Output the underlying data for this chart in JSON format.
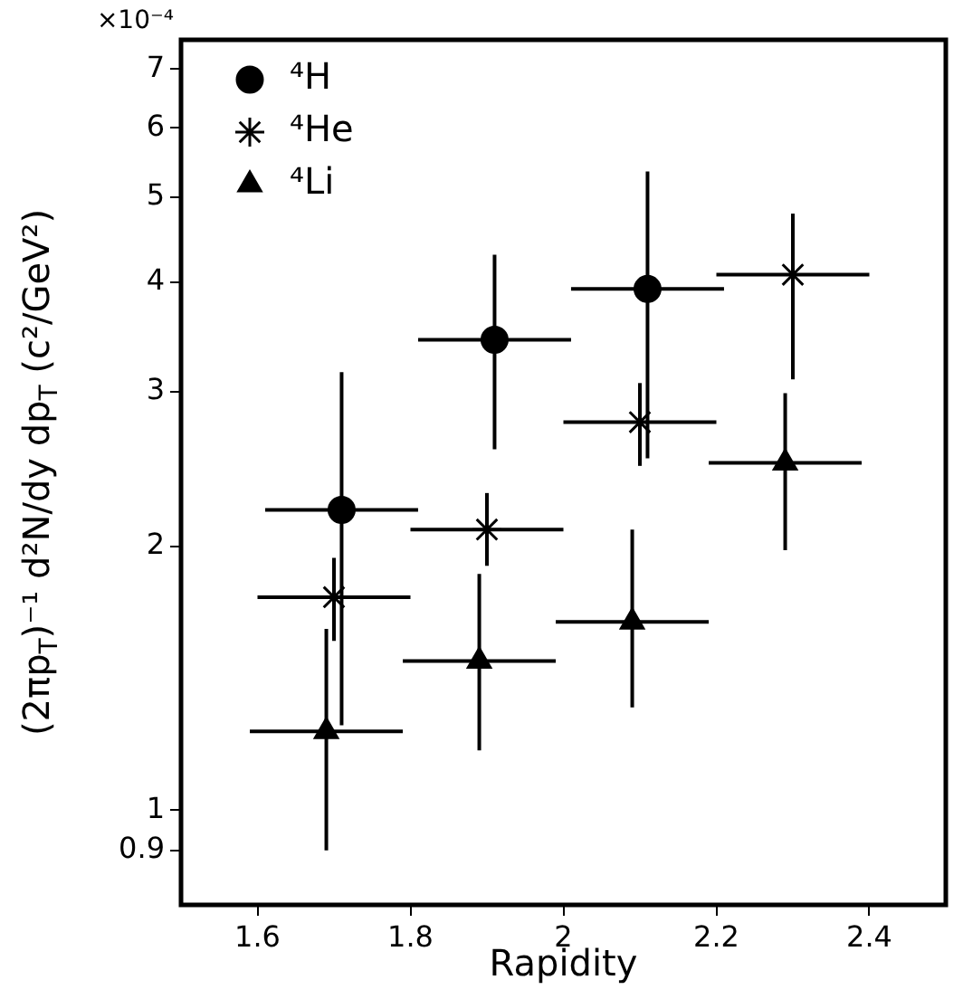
{
  "chart_data": {
    "type": "scatter",
    "xlabel": "Rapidity",
    "ylabel": "(2πp$_{T}$)⁻¹ d²N/dy dp$_{T}$ (c²/GeV²)",
    "xlim": [
      1.5,
      2.5
    ],
    "xticks": [
      1.6,
      1.8,
      2,
      2.2,
      2.4
    ],
    "ylim": [
      0.78,
      7.56
    ],
    "log": true,
    "yticks": [
      0.9,
      1,
      2,
      3,
      4,
      5,
      6,
      7
    ],
    "annotations": [
      "×10⁻⁴"
    ],
    "grid": false,
    "legend": "top left",
    "series": [
      {
        "name": "⁴H",
        "color": "#000000",
        "marker": "circle",
        "x": [
          1.71,
          1.91,
          2.11
        ],
        "values": [
          2.2,
          3.44,
          3.93
        ],
        "errors": [
          [
            1.25,
            3.16
          ],
          [
            2.58,
            4.3
          ],
          [
            2.52,
            5.35
          ]
        ],
        "xerrors": [
          [
            1.61,
            1.81
          ],
          [
            1.81,
            2.01
          ],
          [
            2.01,
            2.21
          ]
        ]
      },
      {
        "name": "⁴He",
        "color": "#000000",
        "marker": "cross",
        "x": [
          1.7,
          1.9,
          2.1,
          2.3
        ],
        "values": [
          1.75,
          2.09,
          2.77,
          4.08
        ],
        "errors": [
          [
            1.56,
            1.94
          ],
          [
            1.9,
            2.3
          ],
          [
            2.47,
            3.07
          ],
          [
            3.1,
            4.79
          ]
        ],
        "xerrors": [
          [
            1.6,
            1.8
          ],
          [
            1.8,
            2.0
          ],
          [
            2.0,
            2.2
          ],
          [
            2.2,
            2.4
          ]
        ]
      },
      {
        "name": "⁴Li",
        "color": "#000000",
        "marker": "triangle",
        "x": [
          1.69,
          1.89,
          2.09,
          2.29
        ],
        "values": [
          1.23,
          1.48,
          1.64,
          2.49
        ],
        "errors": [
          [
            0.9,
            1.61
          ],
          [
            1.17,
            1.86
          ],
          [
            1.31,
            2.09
          ],
          [
            1.98,
            2.99
          ]
        ],
        "xerrors": [
          [
            1.59,
            1.79
          ],
          [
            1.79,
            1.99
          ],
          [
            1.99,
            2.19
          ],
          [
            2.19,
            2.39
          ]
        ]
      }
    ]
  }
}
